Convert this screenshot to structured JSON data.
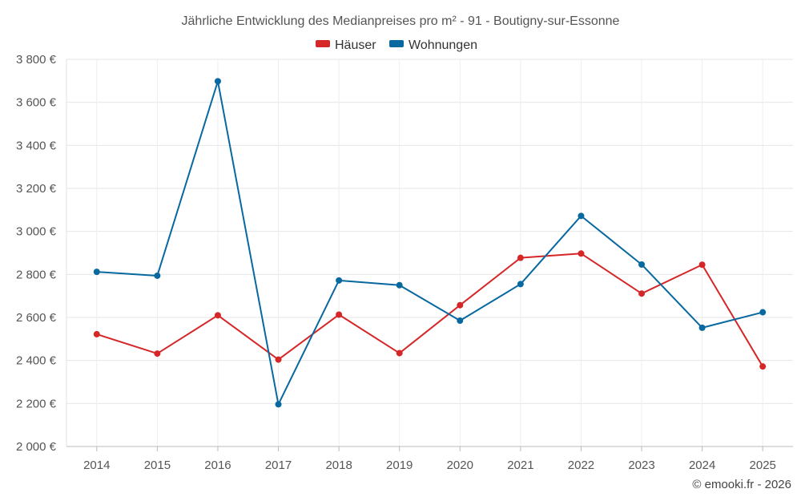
{
  "chart_data": {
    "type": "line",
    "title": "Jährliche Entwicklung des Medianpreises pro m² - 91 - Boutigny-sur-Essonne",
    "categories": [
      "2014",
      "2015",
      "2016",
      "2017",
      "2018",
      "2019",
      "2020",
      "2021",
      "2022",
      "2023",
      "2024",
      "2025"
    ],
    "series": [
      {
        "name": "Häuser",
        "color": "#d62728",
        "values": [
          2522,
          2432,
          2610,
          2404,
          2613,
          2434,
          2657,
          2877,
          2897,
          2711,
          2845,
          2372
        ]
      },
      {
        "name": "Wohnungen",
        "color": "#0868a0",
        "values": [
          2812,
          2794,
          3698,
          2196,
          2772,
          2750,
          2585,
          2755,
          3072,
          2846,
          2552,
          2624
        ]
      }
    ],
    "ylim": [
      2000,
      3800
    ],
    "yticks": [
      2000,
      2200,
      2400,
      2600,
      2800,
      3000,
      3200,
      3400,
      3600,
      3800
    ],
    "ytick_labels": [
      "2 000 €",
      "2 200 €",
      "2 400 €",
      "2 600 €",
      "2 800 €",
      "3 000 €",
      "3 200 €",
      "3 400 €",
      "3 600 €",
      "3 800 €"
    ],
    "xlabel": "",
    "ylabel": "",
    "grid": true,
    "legend_position": "top-center"
  },
  "credit": "© emooki.fr - 2026"
}
